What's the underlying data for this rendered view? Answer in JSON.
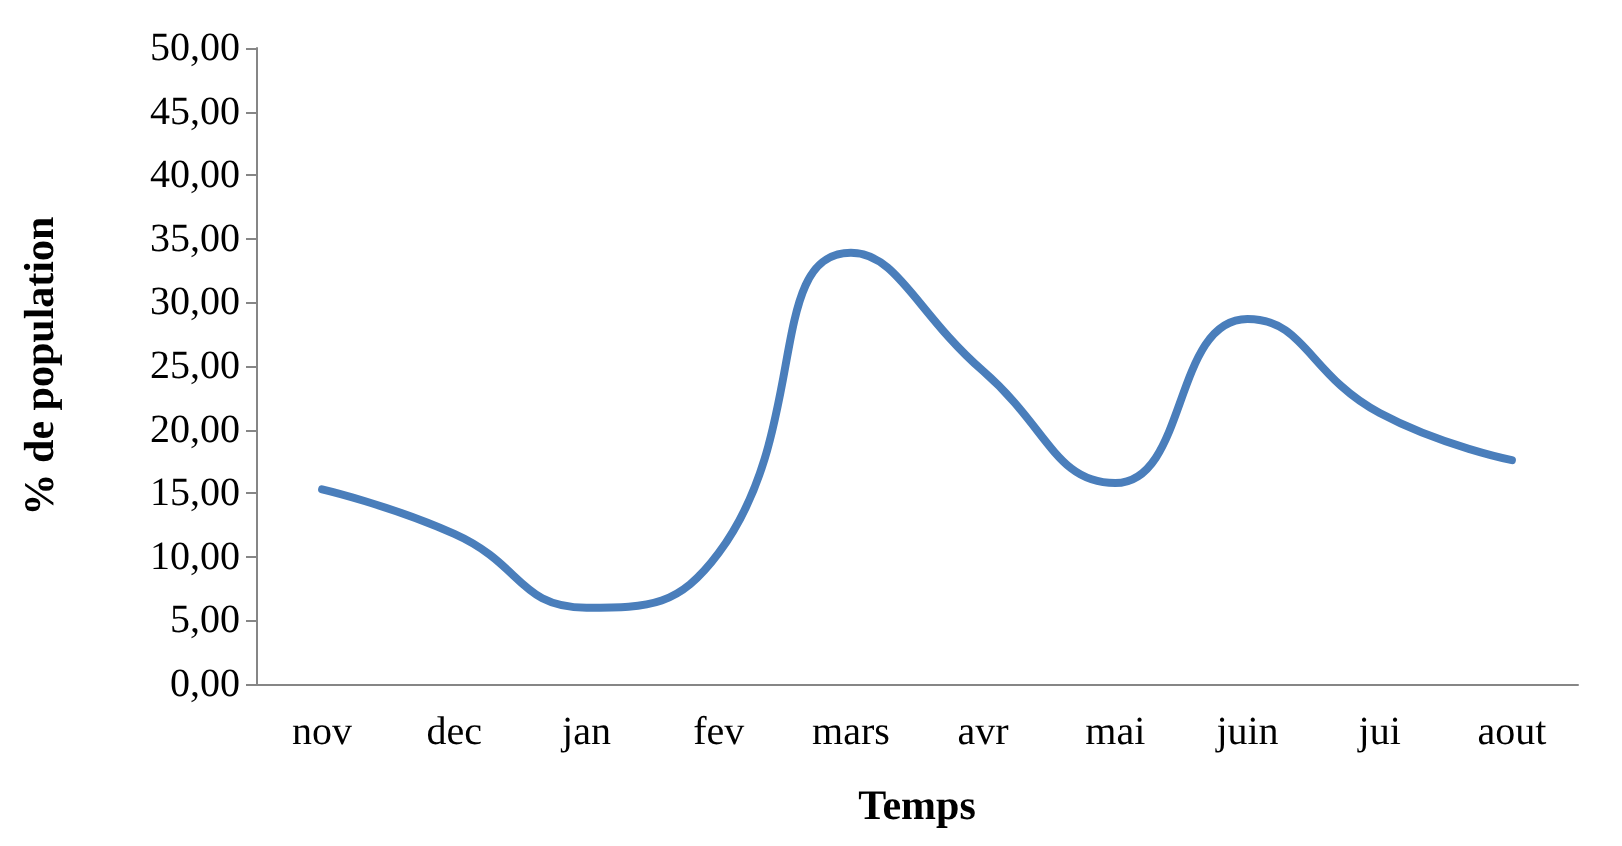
{
  "chart_data": {
    "type": "line",
    "xlabel": "Temps",
    "ylabel": "% de population",
    "categories": [
      "nov",
      "dec",
      "jan",
      "fev",
      "mars",
      "avr",
      "mai",
      "juin",
      "jui",
      "aout"
    ],
    "series": [
      {
        "color": "#4a7ebb",
        "values": [
          15.3,
          11.8,
          6.0,
          10.3,
          33.9,
          24.6,
          15.8,
          28.7,
          21.3,
          17.6
        ]
      }
    ],
    "ylim": [
      0,
      50
    ],
    "yticks": [
      {
        "value": 0,
        "label": "0,00"
      },
      {
        "value": 5,
        "label": "5,00"
      },
      {
        "value": 10,
        "label": "10,00"
      },
      {
        "value": 15,
        "label": "15,00"
      },
      {
        "value": 20,
        "label": "20,00"
      },
      {
        "value": 25,
        "label": "25,00"
      },
      {
        "value": 30,
        "label": "30,00"
      },
      {
        "value": 35,
        "label": "35,00"
      },
      {
        "value": 40,
        "label": "40,00"
      },
      {
        "value": 45,
        "label": "45,00"
      },
      {
        "value": 50,
        "label": "50,00"
      }
    ],
    "grid": false,
    "marker": "none",
    "line_style": "solid"
  }
}
